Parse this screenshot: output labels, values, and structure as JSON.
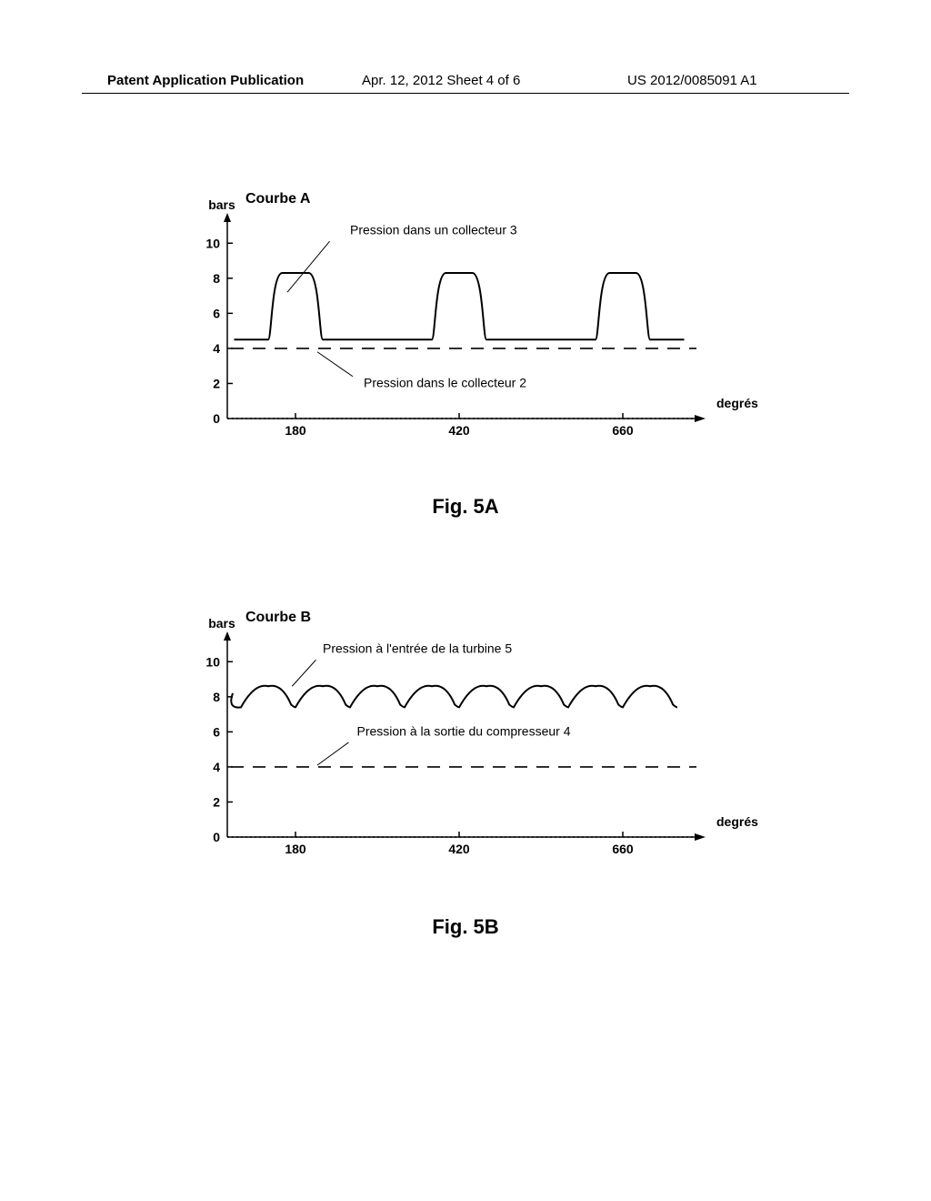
{
  "header": {
    "left": "Patent Application Publication",
    "center": "Apr. 12, 2012  Sheet 4 of 6",
    "right": "US 2012/0085091 A1"
  },
  "chartA": {
    "type": "line",
    "title": "Courbe A",
    "y_label": "bars",
    "x_label": "degrés",
    "y_ticks": [
      0,
      2,
      4,
      6,
      8,
      10
    ],
    "x_ticks": [
      180,
      420,
      660
    ],
    "xlim": [
      80,
      760
    ],
    "ylim": [
      0,
      11
    ],
    "annot_top": "Pression dans un collecteur 3",
    "annot_bottom": "Pression dans le collecteur 2",
    "series_pulse": {
      "baseline": 4.5,
      "peak": 8.3,
      "centers": [
        180,
        420,
        660
      ],
      "half_width": 35
    },
    "dashed_level": 4.0,
    "title_fontsize": 16,
    "label_fontsize": 14,
    "axis_color": "#000000",
    "curve_color": "#000000",
    "background_color": "#ffffff",
    "line_width": 2,
    "dash_pattern": "14,10"
  },
  "chartB": {
    "type": "line",
    "title": "Courbe B",
    "y_label": "bars",
    "x_label": "degrés",
    "y_ticks": [
      0,
      2,
      4,
      6,
      8,
      10
    ],
    "x_ticks": [
      180,
      420,
      660
    ],
    "xlim": [
      80,
      760
    ],
    "ylim": [
      0,
      11
    ],
    "annot_top": "Pression à l'entrée de la turbine 5",
    "annot_bottom": "Pression à la sortie du compresseur 4",
    "series_wave": {
      "trough": 7.4,
      "peak": 8.6,
      "period": 80,
      "phase": 100
    },
    "dashed_level": 4.0,
    "title_fontsize": 16,
    "label_fontsize": 14,
    "axis_color": "#000000",
    "curve_color": "#000000",
    "background_color": "#ffffff",
    "line_width": 2,
    "dash_pattern": "14,10"
  },
  "captions": {
    "figA": "Fig. 5A",
    "figB": "Fig. 5B"
  },
  "colors": {
    "text": "#000000",
    "background": "#ffffff"
  }
}
